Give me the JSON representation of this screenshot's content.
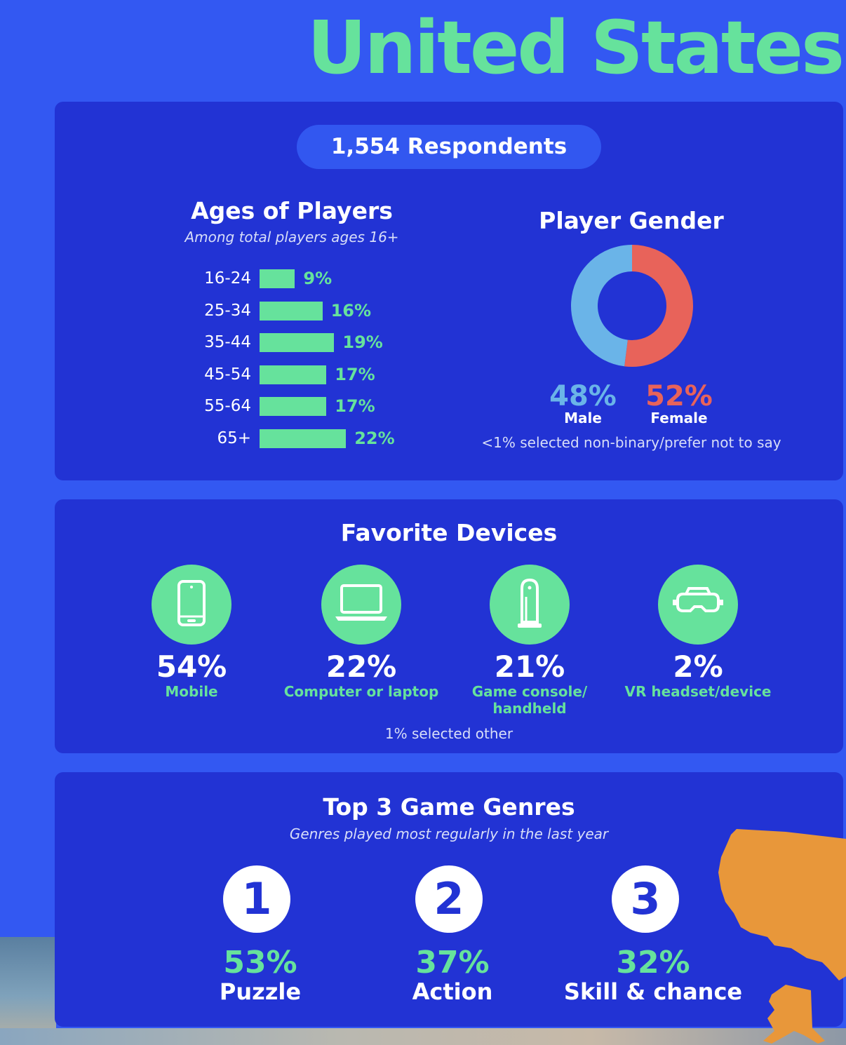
{
  "title": "United States",
  "respondents": "1,554 Respondents",
  "ages": {
    "title": "Ages of Players",
    "subtitle": "Among total players ages 16+"
  },
  "gender": {
    "title": "Player Gender",
    "male_pct": "48%",
    "male_label": "Male",
    "female_pct": "52%",
    "female_label": "Female",
    "note": "<1% selected non-binary/prefer not to say",
    "male_color": "#6ab4e8",
    "female_color": "#e8635a"
  },
  "devices": {
    "title": "Favorite Devices",
    "items": [
      {
        "pct": "54%",
        "label": "Mobile",
        "icon": "mobile-phone-icon"
      },
      {
        "pct": "22%",
        "label": "Computer or laptop",
        "icon": "laptop-icon"
      },
      {
        "pct": "21%",
        "label": "Game console/ handheld",
        "icon": "game-console-icon"
      },
      {
        "pct": "2%",
        "label": "VR headset/device",
        "icon": "vr-headset-icon"
      }
    ],
    "note": "1% selected other"
  },
  "genres": {
    "title": "Top 3 Game Genres",
    "subtitle": "Genres played most regularly in the last year",
    "items": [
      {
        "rank": "1",
        "pct": "53%",
        "label": "Puzzle"
      },
      {
        "rank": "2",
        "pct": "37%",
        "label": "Action"
      },
      {
        "rank": "3",
        "pct": "32%",
        "label": "Skill & chance"
      }
    ]
  },
  "chart_data": [
    {
      "type": "bar",
      "orientation": "horizontal",
      "title": "Ages of Players",
      "subtitle": "Among total players ages 16+",
      "categories": [
        "16-24",
        "25-34",
        "35-44",
        "45-54",
        "55-64",
        "65+"
      ],
      "values": [
        9,
        16,
        19,
        17,
        17,
        22
      ],
      "value_labels": [
        "9%",
        "16%",
        "19%",
        "17%",
        "17%",
        "22%"
      ],
      "unit": "%",
      "color": "#66e29c"
    },
    {
      "type": "pie",
      "variant": "donut",
      "title": "Player Gender",
      "categories": [
        "Male",
        "Female"
      ],
      "values": [
        48,
        52
      ],
      "colors": [
        "#6ab4e8",
        "#e8635a"
      ]
    }
  ]
}
